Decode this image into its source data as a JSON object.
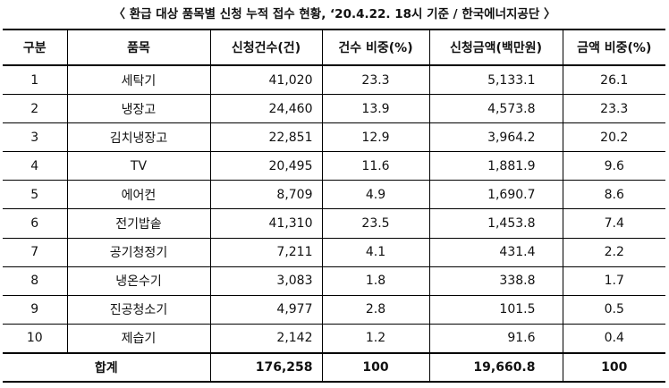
{
  "title": "〈 환급 대상 품목별 신청 누적 접수 현황, ‘20.4.22. 18시 기준 / 한국에너지공단 〉",
  "headers": [
    "구분",
    "품목",
    "신청건수(건)",
    "건수 비중(%)",
    "신청금액(백만원)",
    "금액 비중(%)"
  ],
  "rows": [
    [
      "1",
      "세탁기",
      "41,020",
      "23.3",
      "5,133.1",
      "26.1"
    ],
    [
      "2",
      "냉장고",
      "24,460",
      "13.9",
      "4,573.8",
      "23.3"
    ],
    [
      "3",
      "김치냉장고",
      "22,851",
      "12.9",
      "3,964.2",
      "20.2"
    ],
    [
      "4",
      "TV",
      "20,495",
      "11.6",
      "1,881.9",
      "9.6"
    ],
    [
      "5",
      "에어컨",
      "8,709",
      "4.9",
      "1,690.7",
      "8.6"
    ],
    [
      "6",
      "전기밥솥",
      "41,310",
      "23.5",
      "1,453.8",
      "7.4"
    ],
    [
      "7",
      "공기청정기",
      "7,211",
      "4.1",
      "431.4",
      "2.2"
    ],
    [
      "8",
      "냉온수기",
      "3,083",
      "1.8",
      "338.8",
      "1.7"
    ],
    [
      "9",
      "진공청소기",
      "4,977",
      "2.8",
      "101.5",
      "0.5"
    ],
    [
      "10",
      "제습기",
      "2,142",
      "1.2",
      "91.6",
      "0.4"
    ]
  ],
  "total": {
    "label": "합계",
    "count": "176,258",
    "count_share": "100",
    "amount": "19,660.8",
    "amount_share": "100"
  }
}
